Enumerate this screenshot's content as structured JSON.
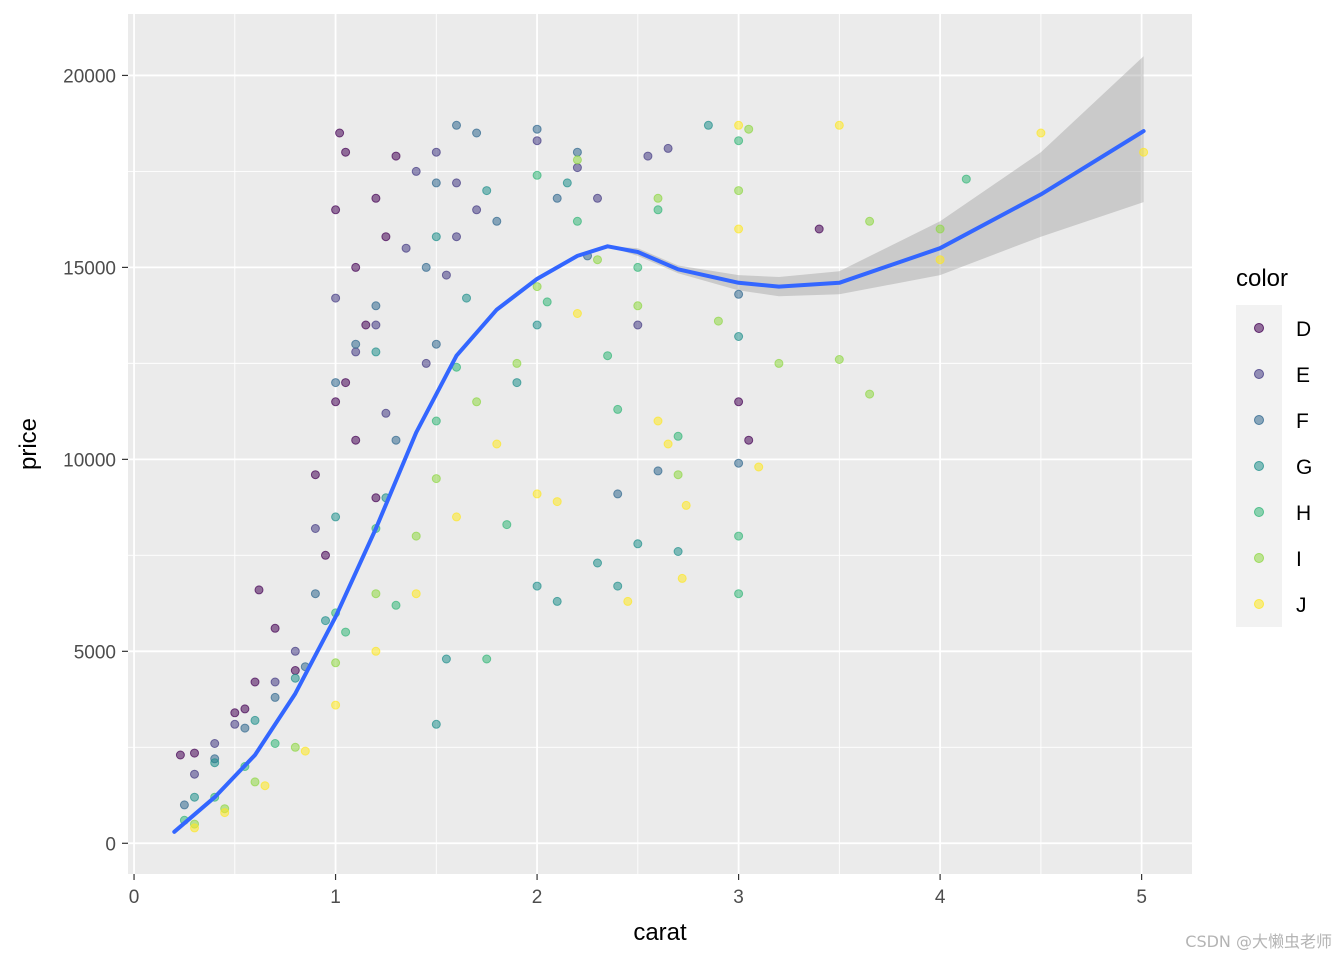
{
  "chart_data": {
    "type": "scatter",
    "xlabel": "carat",
    "ylabel": "price",
    "xlim": [
      -0.03,
      5.25
    ],
    "ylim": [
      -800,
      21600
    ],
    "x_ticks": [
      0,
      1,
      2,
      3,
      4,
      5
    ],
    "y_ticks": [
      0,
      5000,
      10000,
      15000,
      20000
    ],
    "x_tick_labels": [
      "0",
      "1",
      "2",
      "3",
      "4",
      "5"
    ],
    "y_tick_labels": [
      "0",
      "5000",
      "10000",
      "15000",
      "20000"
    ],
    "grid": true,
    "legend": {
      "title": "color",
      "placement": "right"
    },
    "series": [
      {
        "name": "D",
        "color": "#440154",
        "points": [
          [
            0.23,
            2300
          ],
          [
            0.3,
            2350
          ],
          [
            0.5,
            3400
          ],
          [
            0.55,
            3500
          ],
          [
            0.6,
            4200
          ],
          [
            0.62,
            6600
          ],
          [
            0.7,
            5600
          ],
          [
            0.9,
            9600
          ],
          [
            1.0,
            16500
          ],
          [
            1.02,
            18500
          ],
          [
            1.05,
            18000
          ],
          [
            1.1,
            15000
          ],
          [
            1.2,
            16800
          ],
          [
            1.25,
            15800
          ],
          [
            1.3,
            17900
          ],
          [
            1.05,
            12000
          ],
          [
            1.1,
            10500
          ],
          [
            1.0,
            11500
          ],
          [
            1.2,
            9000
          ],
          [
            3.4,
            16000
          ],
          [
            3.0,
            11500
          ],
          [
            3.05,
            10500
          ],
          [
            0.8,
            4500
          ],
          [
            0.95,
            7500
          ],
          [
            1.15,
            13500
          ]
        ]
      },
      {
        "name": "E",
        "color": "#443A83",
        "points": [
          [
            0.3,
            1800
          ],
          [
            0.4,
            2600
          ],
          [
            0.5,
            3100
          ],
          [
            0.7,
            4200
          ],
          [
            0.8,
            5000
          ],
          [
            1.0,
            14200
          ],
          [
            1.2,
            13500
          ],
          [
            1.4,
            17500
          ],
          [
            1.5,
            18000
          ],
          [
            1.6,
            17200
          ],
          [
            1.7,
            16500
          ],
          [
            1.55,
            14800
          ],
          [
            2.0,
            18300
          ],
          [
            2.2,
            17600
          ],
          [
            2.55,
            17900
          ],
          [
            2.65,
            18100
          ],
          [
            1.45,
            12500
          ],
          [
            1.35,
            15500
          ],
          [
            2.5,
            13500
          ],
          [
            0.9,
            8200
          ],
          [
            1.1,
            12800
          ],
          [
            1.25,
            11200
          ],
          [
            1.6,
            15800
          ],
          [
            2.3,
            16800
          ]
        ]
      },
      {
        "name": "F",
        "color": "#31688E",
        "points": [
          [
            0.25,
            1000
          ],
          [
            0.4,
            2200
          ],
          [
            0.55,
            3000
          ],
          [
            0.7,
            3800
          ],
          [
            0.9,
            6500
          ],
          [
            1.0,
            12000
          ],
          [
            1.2,
            14000
          ],
          [
            1.5,
            17200
          ],
          [
            1.6,
            18700
          ],
          [
            1.7,
            18500
          ],
          [
            2.0,
            18600
          ],
          [
            2.1,
            16800
          ],
          [
            2.25,
            15300
          ],
          [
            2.6,
            9700
          ],
          [
            2.4,
            9100
          ],
          [
            3.0,
            14300
          ],
          [
            3.0,
            9900
          ],
          [
            1.5,
            13000
          ],
          [
            1.3,
            10500
          ],
          [
            0.85,
            4600
          ],
          [
            1.1,
            13000
          ],
          [
            1.8,
            16200
          ],
          [
            2.2,
            18000
          ],
          [
            1.45,
            15000
          ]
        ]
      },
      {
        "name": "G",
        "color": "#21908C",
        "points": [
          [
            0.3,
            1200
          ],
          [
            0.4,
            2100
          ],
          [
            0.6,
            3200
          ],
          [
            0.8,
            4300
          ],
          [
            1.0,
            8500
          ],
          [
            1.2,
            12800
          ],
          [
            1.5,
            15800
          ],
          [
            1.5,
            3100
          ],
          [
            1.55,
            4800
          ],
          [
            1.75,
            17000
          ],
          [
            2.0,
            13500
          ],
          [
            2.0,
            6700
          ],
          [
            2.1,
            6300
          ],
          [
            2.3,
            7300
          ],
          [
            2.5,
            7800
          ],
          [
            2.85,
            18700
          ],
          [
            3.0,
            13200
          ],
          [
            2.7,
            7600
          ],
          [
            1.65,
            14200
          ],
          [
            1.25,
            9000
          ],
          [
            2.4,
            6700
          ],
          [
            1.9,
            12000
          ],
          [
            0.95,
            5800
          ],
          [
            2.15,
            17200
          ]
        ]
      },
      {
        "name": "H",
        "color": "#35B779",
        "points": [
          [
            0.25,
            600
          ],
          [
            0.4,
            1200
          ],
          [
            0.55,
            2000
          ],
          [
            0.7,
            2600
          ],
          [
            1.0,
            6000
          ],
          [
            1.2,
            8200
          ],
          [
            1.5,
            11000
          ],
          [
            1.6,
            12400
          ],
          [
            2.0,
            17400
          ],
          [
            2.2,
            16200
          ],
          [
            2.5,
            15000
          ],
          [
            2.7,
            10600
          ],
          [
            3.0,
            8000
          ],
          [
            3.0,
            6500
          ],
          [
            3.0,
            18300
          ],
          [
            4.13,
            17300
          ],
          [
            1.75,
            4800
          ],
          [
            1.85,
            8300
          ],
          [
            2.4,
            11300
          ],
          [
            1.3,
            6200
          ],
          [
            1.05,
            5500
          ],
          [
            2.05,
            14100
          ],
          [
            2.6,
            16500
          ],
          [
            2.35,
            12700
          ]
        ]
      },
      {
        "name": "I",
        "color": "#8FD744",
        "points": [
          [
            0.3,
            500
          ],
          [
            0.45,
            900
          ],
          [
            0.6,
            1600
          ],
          [
            0.8,
            2500
          ],
          [
            1.0,
            4700
          ],
          [
            1.2,
            6500
          ],
          [
            1.5,
            9500
          ],
          [
            1.7,
            11500
          ],
          [
            2.0,
            14500
          ],
          [
            2.2,
            17800
          ],
          [
            2.5,
            14000
          ],
          [
            2.6,
            16800
          ],
          [
            3.0,
            17000
          ],
          [
            3.05,
            18600
          ],
          [
            3.2,
            12500
          ],
          [
            3.5,
            12600
          ],
          [
            3.65,
            16200
          ],
          [
            3.65,
            11700
          ],
          [
            4.0,
            16000
          ],
          [
            2.9,
            13600
          ],
          [
            2.7,
            9600
          ],
          [
            1.4,
            8000
          ],
          [
            1.9,
            12500
          ],
          [
            2.3,
            15200
          ]
        ]
      },
      {
        "name": "J",
        "color": "#FDE725",
        "points": [
          [
            0.3,
            400
          ],
          [
            0.45,
            800
          ],
          [
            0.65,
            1500
          ],
          [
            0.85,
            2400
          ],
          [
            1.0,
            3600
          ],
          [
            1.2,
            5000
          ],
          [
            1.4,
            6500
          ],
          [
            1.6,
            8500
          ],
          [
            1.8,
            10400
          ],
          [
            2.0,
            9100
          ],
          [
            2.1,
            8900
          ],
          [
            2.45,
            6300
          ],
          [
            2.6,
            11000
          ],
          [
            2.65,
            10400
          ],
          [
            2.72,
            6900
          ],
          [
            2.74,
            8800
          ],
          [
            3.0,
            18700
          ],
          [
            3.0,
            16000
          ],
          [
            3.1,
            9800
          ],
          [
            3.5,
            18700
          ],
          [
            4.0,
            15200
          ],
          [
            4.5,
            18500
          ],
          [
            5.01,
            18000
          ],
          [
            2.2,
            13800
          ]
        ]
      }
    ],
    "smooth": {
      "color": "#3366FF",
      "fit": [
        [
          0.2,
          300
        ],
        [
          0.4,
          1200
        ],
        [
          0.6,
          2300
        ],
        [
          0.8,
          3900
        ],
        [
          1.0,
          5900
        ],
        [
          1.2,
          8200
        ],
        [
          1.4,
          10700
        ],
        [
          1.6,
          12700
        ],
        [
          1.8,
          13900
        ],
        [
          2.0,
          14700
        ],
        [
          2.2,
          15300
        ],
        [
          2.35,
          15550
        ],
        [
          2.5,
          15400
        ],
        [
          2.7,
          14950
        ],
        [
          3.0,
          14600
        ],
        [
          3.2,
          14500
        ],
        [
          3.5,
          14600
        ],
        [
          4.0,
          15500
        ],
        [
          4.5,
          16900
        ],
        [
          5.01,
          18550
        ]
      ],
      "band_upper": [
        [
          2.35,
          15550
        ],
        [
          2.5,
          15500
        ],
        [
          2.7,
          15050
        ],
        [
          3.0,
          14800
        ],
        [
          3.2,
          14750
        ],
        [
          3.5,
          14900
        ],
        [
          4.0,
          16200
        ],
        [
          4.5,
          18000
        ],
        [
          5.01,
          20500
        ]
      ],
      "band_lower": [
        [
          2.35,
          15550
        ],
        [
          2.5,
          15300
        ],
        [
          2.7,
          14850
        ],
        [
          3.0,
          14400
        ],
        [
          3.2,
          14250
        ],
        [
          3.5,
          14300
        ],
        [
          4.0,
          14800
        ],
        [
          4.5,
          15800
        ],
        [
          5.01,
          16700
        ]
      ]
    }
  },
  "watermark": "CSDN @大懒虫老师"
}
